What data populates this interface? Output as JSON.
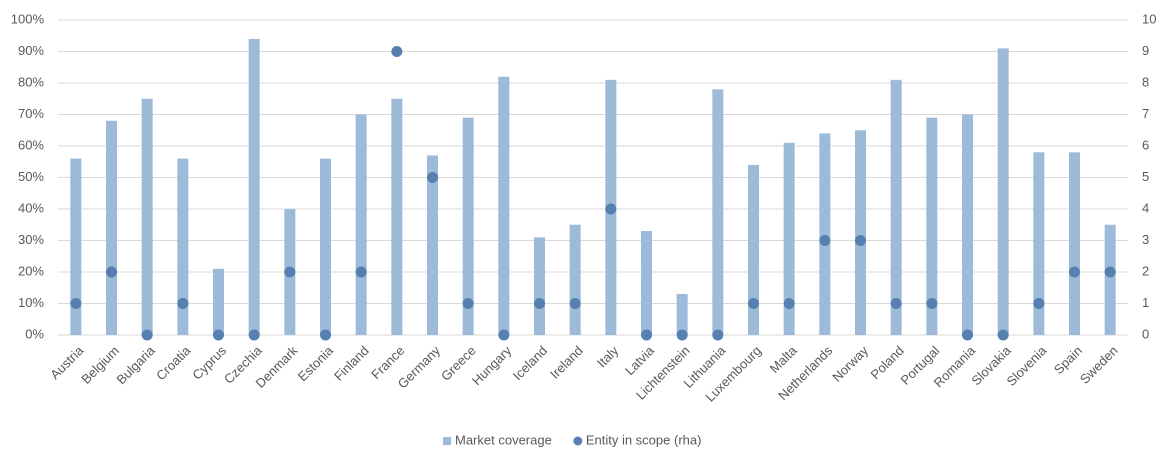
{
  "chart_data": {
    "type": "bar",
    "categories": [
      "Austria",
      "Belgium",
      "Bulgaria",
      "Croatia",
      "Cyprus",
      "Czechia",
      "Denmark",
      "Estonia",
      "Finland",
      "France",
      "Germany",
      "Greece",
      "Hungary",
      "Iceland",
      "Ireland",
      "Italy",
      "Latvia",
      "Lichtenstein",
      "Lithuania",
      "Luxembourg",
      "Malta",
      "Netherlands",
      "Norway",
      "Poland",
      "Portugal",
      "Romania",
      "Slovakia",
      "Slovenia",
      "Spain",
      "Sweden"
    ],
    "series": [
      {
        "name": "Market coverage",
        "type": "bar",
        "color": "#9dbad9",
        "values": [
          56,
          68,
          75,
          56,
          21,
          94,
          40,
          56,
          70,
          75,
          57,
          69,
          82,
          31,
          35,
          81,
          33,
          13,
          78,
          54,
          61,
          64,
          65,
          81,
          69,
          70,
          91,
          58,
          58,
          35
        ]
      },
      {
        "name": "Entity in scope (rha)",
        "type": "scatter",
        "axis": "y2",
        "color": "#5580b0",
        "values": [
          1,
          2,
          0,
          1,
          0,
          0,
          2,
          0,
          2,
          9,
          5,
          1,
          0,
          1,
          1,
          4,
          0,
          0,
          0,
          1,
          1,
          3,
          3,
          1,
          1,
          0,
          0,
          1,
          2,
          2
        ]
      }
    ],
    "ylim": [
      0,
      100
    ],
    "yticks": [
      {
        "value": 0,
        "label": "0%"
      },
      {
        "value": 10,
        "label": "10%"
      },
      {
        "value": 20,
        "label": "20%"
      },
      {
        "value": 30,
        "label": "30%"
      },
      {
        "value": 40,
        "label": "40%"
      },
      {
        "value": 50,
        "label": "50%"
      },
      {
        "value": 60,
        "label": "60%"
      },
      {
        "value": 70,
        "label": "70%"
      },
      {
        "value": 80,
        "label": "80%"
      },
      {
        "value": 90,
        "label": "90%"
      },
      {
        "value": 100,
        "label": "100%"
      }
    ],
    "y2lim": [
      0,
      10
    ],
    "y2ticks": [
      0,
      1,
      2,
      3,
      4,
      5,
      6,
      7,
      8,
      9,
      10
    ],
    "grid": true
  }
}
